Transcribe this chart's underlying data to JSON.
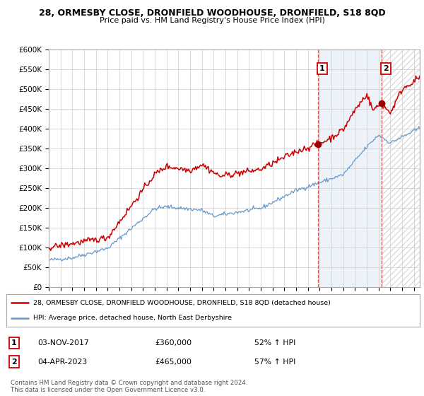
{
  "title1": "28, ORMESBY CLOSE, DRONFIELD WOODHOUSE, DRONFIELD, S18 8QD",
  "title2": "Price paid vs. HM Land Registry's House Price Index (HPI)",
  "legend_line1": "28, ORMESBY CLOSE, DRONFIELD WOODHOUSE, DRONFIELD, S18 8QD (detached house)",
  "legend_line2": "HPI: Average price, detached house, North East Derbyshire",
  "footer": "Contains HM Land Registry data © Crown copyright and database right 2024.\nThis data is licensed under the Open Government Licence v3.0.",
  "annotation1": {
    "label": "1",
    "date": "03-NOV-2017",
    "price": "£360,000",
    "pct": "52% ↑ HPI"
  },
  "annotation2": {
    "label": "2",
    "date": "04-APR-2023",
    "price": "£465,000",
    "pct": "57% ↑ HPI"
  },
  "hpi_color": "#6699cc",
  "price_color": "#cc0000",
  "background_color": "#ffffff",
  "grid_color": "#cccccc",
  "ylim": [
    0,
    600000
  ],
  "yticks": [
    0,
    50000,
    100000,
    150000,
    200000,
    250000,
    300000,
    350000,
    400000,
    450000,
    500000,
    550000,
    600000
  ],
  "xlim_start": 1995.0,
  "xlim_end": 2026.5,
  "point1_x": 2017.84,
  "point1_y": 360000,
  "point2_x": 2023.25,
  "point2_y": 465000
}
